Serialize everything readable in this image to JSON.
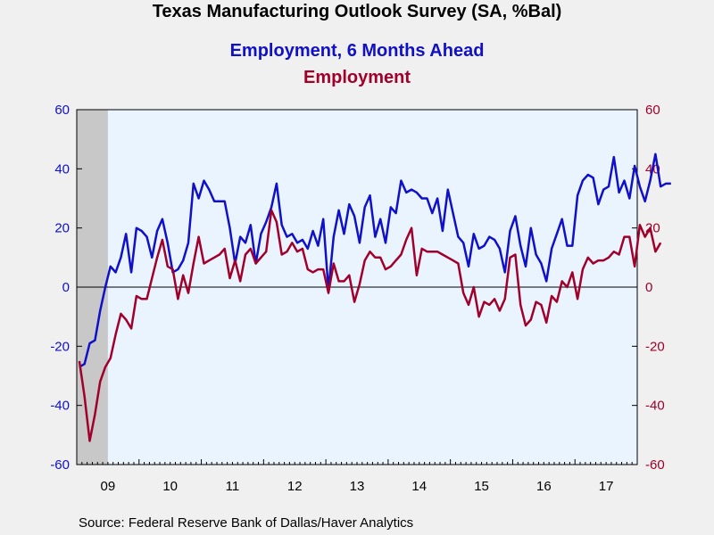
{
  "title": "Texas Manufacturing Outlook Survey (SA, %Bal)",
  "subtitle1": "Employment, 6 Months Ahead",
  "subtitle2": "Employment",
  "source": "Source:  Federal Reserve Bank of Dallas/Haver Analytics",
  "colors": {
    "series1": "#1010c8",
    "series2": "#a0002a",
    "plot_bg": "#eaf4ff",
    "recession": "#c8c8c8",
    "page_bg": "#f0f0f0"
  },
  "chart_data": {
    "type": "line",
    "x_unit": "monthly, Jan 2009 - Nov 2017",
    "x_tick_labels": [
      "09",
      "10",
      "11",
      "12",
      "13",
      "14",
      "15",
      "16",
      "17"
    ],
    "y_left": {
      "ylim": [
        -60,
        60
      ],
      "ticks": [
        -60,
        -40,
        -20,
        0,
        20,
        40,
        60
      ]
    },
    "y_right": {
      "ylim": [
        -60,
        60
      ],
      "ticks": [
        -60,
        -40,
        -20,
        0,
        20,
        40,
        60
      ]
    },
    "recession_shading": {
      "start": "2009-01",
      "end": "2009-06"
    },
    "zero_line": true,
    "series": [
      {
        "name": "Employment, 6 Months Ahead",
        "values": [
          -27,
          -26,
          -19,
          -18,
          -8,
          0,
          7,
          5,
          10,
          18,
          5,
          20,
          19,
          17,
          10,
          19,
          23,
          15,
          5,
          6,
          9,
          15,
          35,
          30,
          36,
          33,
          29,
          29,
          29,
          20,
          8,
          17,
          15,
          21,
          8,
          18,
          22,
          27,
          35,
          21,
          17,
          18,
          15,
          16,
          13,
          19,
          14,
          23,
          -1,
          17,
          26,
          18,
          28,
          24,
          15,
          27,
          31,
          17,
          23,
          15,
          27,
          25,
          36,
          32,
          33,
          32,
          30,
          30,
          25,
          30,
          19,
          33,
          25,
          17,
          15,
          7,
          18,
          13,
          14,
          17,
          16,
          13,
          5,
          19,
          24,
          14,
          7,
          20,
          11,
          8,
          2,
          13,
          18,
          23,
          14,
          14,
          31,
          36,
          38,
          37,
          28,
          33,
          34,
          44,
          32,
          36,
          30,
          41,
          34,
          29,
          36,
          45,
          34,
          35,
          35
        ],
        "color": "#1010c8"
      },
      {
        "name": "Employment",
        "values": [
          -25,
          -37,
          -52,
          -43,
          -32,
          -27,
          -24,
          -16,
          -9,
          -11,
          -14,
          -3,
          -4,
          -4,
          3,
          10,
          16,
          7,
          6,
          -4,
          4,
          -2,
          8,
          17,
          8,
          9,
          10,
          11,
          13,
          3,
          9,
          2,
          11,
          13,
          8,
          10,
          12,
          26,
          22,
          11,
          12,
          15,
          12,
          13,
          6,
          5,
          6,
          6,
          -2,
          8,
          2,
          2,
          4,
          -5,
          1,
          9,
          12,
          10,
          10,
          6,
          7,
          9,
          11,
          16,
          20,
          4,
          13,
          12,
          12,
          12,
          11,
          10,
          9,
          8,
          -2,
          -6,
          0,
          -10,
          -5,
          -6,
          -4,
          -8,
          -4,
          10,
          11,
          -6,
          -13,
          -11,
          -5,
          -6,
          -12,
          -3,
          -5,
          2,
          0,
          5,
          -4,
          6,
          10,
          8,
          9,
          9,
          10,
          12,
          11,
          17,
          17,
          7,
          21,
          17,
          20,
          12,
          15
        ],
        "color": "#a0002a"
      }
    ]
  }
}
